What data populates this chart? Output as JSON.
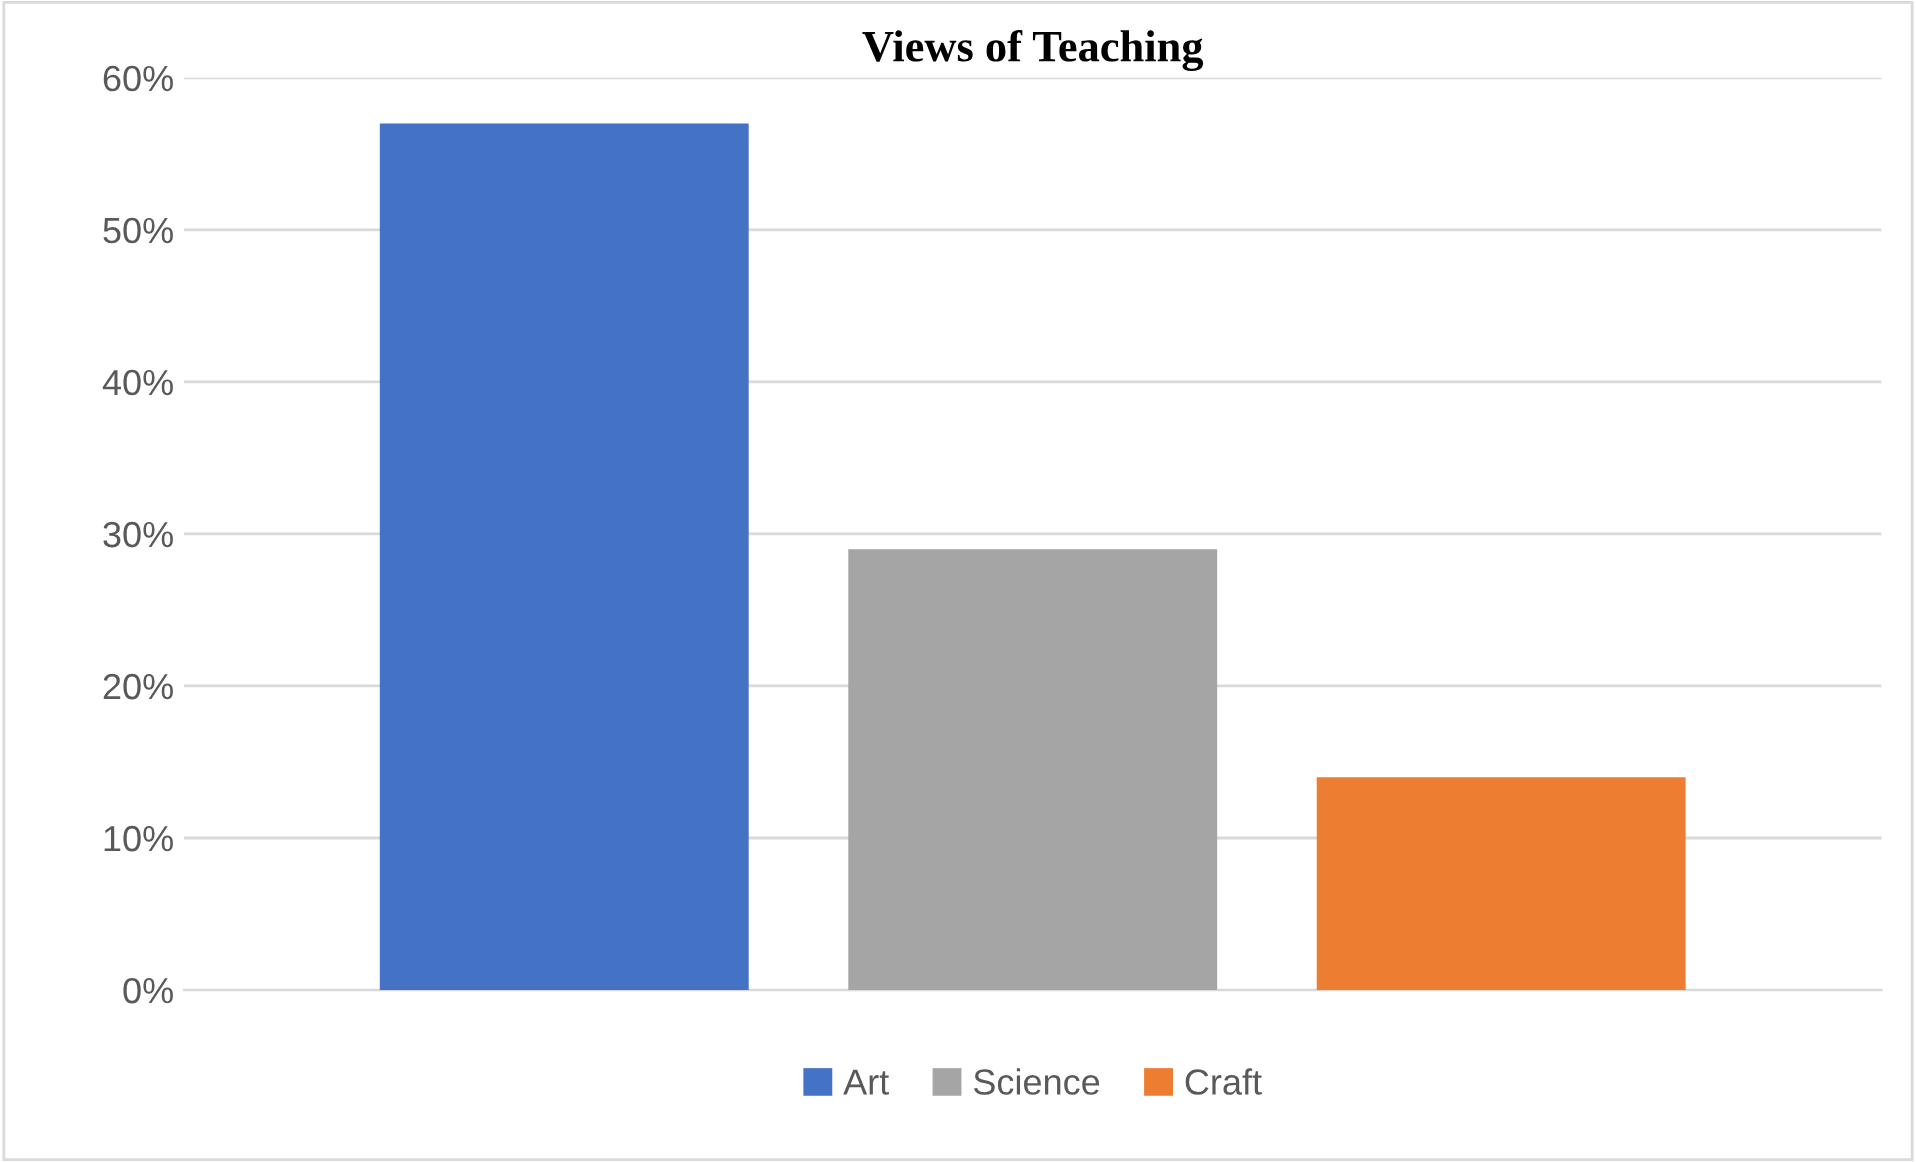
{
  "chart_data": {
    "type": "bar",
    "title": "Views of Teaching",
    "categories": [
      null
    ],
    "series": [
      {
        "name": "Art",
        "color": "#4472c4",
        "values": [
          57
        ]
      },
      {
        "name": "Science",
        "color": "#a5a5a5",
        "values": [
          29
        ]
      },
      {
        "name": "Craft",
        "color": "#ed7d31",
        "values": [
          14
        ]
      }
    ],
    "ylim": [
      0,
      60
    ],
    "yticks": [
      {
        "value": 0,
        "label": "0%"
      },
      {
        "value": 10,
        "label": "10%"
      },
      {
        "value": 20,
        "label": "20%"
      },
      {
        "value": 30,
        "label": "30%"
      },
      {
        "value": 40,
        "label": "40%"
      },
      {
        "value": 50,
        "label": "50%"
      },
      {
        "value": 60,
        "label": "60%"
      }
    ],
    "grid": "y",
    "legend": "bottom",
    "tick_labels": "y"
  }
}
